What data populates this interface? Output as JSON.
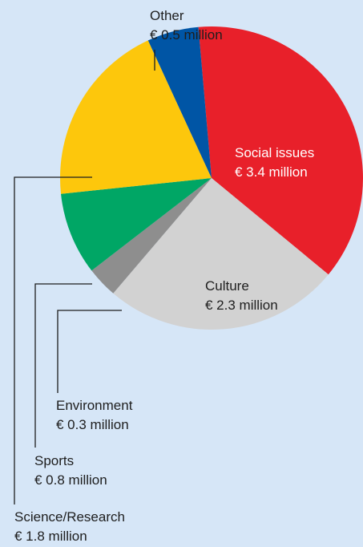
{
  "chart_data": {
    "type": "pie",
    "unit": "€ million",
    "slices": [
      {
        "name": "Social issues",
        "value": 3.4,
        "value_label": "€ 3.4 million",
        "color": "#e8202a",
        "label_color": "#ffffff"
      },
      {
        "name": "Culture",
        "value": 2.3,
        "value_label": "€ 2.3 million",
        "color": "#d2d2d2",
        "label_color": "#1e1e1e"
      },
      {
        "name": "Environment",
        "value": 0.3,
        "value_label": "€ 0.3 million",
        "color": "#8e8e8e",
        "label_color": "#1e1e1e"
      },
      {
        "name": "Sports",
        "value": 0.8,
        "value_label": "€ 0.8 million",
        "color": "#00a665",
        "label_color": "#1e1e1e"
      },
      {
        "name": "Science/Research",
        "value": 1.8,
        "value_label": "€ 1.8 million",
        "color": "#fdc70c",
        "label_color": "#1e1e1e"
      },
      {
        "name": "Other",
        "value": 0.5,
        "value_label": "€ 0.5 million",
        "color": "#0055a5",
        "label_color": "#1e1e1e"
      }
    ]
  }
}
